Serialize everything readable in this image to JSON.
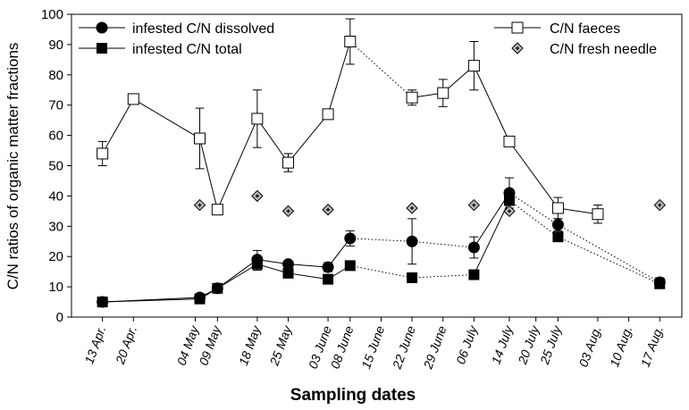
{
  "chart_data": {
    "type": "line",
    "xlabel": "Sampling dates",
    "ylabel": "C/N ratios of organic matter fractions",
    "ylim": [
      0,
      100
    ],
    "yticks": [
      0,
      10,
      20,
      30,
      40,
      50,
      60,
      70,
      80,
      90,
      100
    ],
    "date_year": 2001,
    "xlim": [
      "2001-04-06",
      "2001-08-22"
    ],
    "xticks": [
      {
        "date": "2001-04-13",
        "label": "13 Apr."
      },
      {
        "date": "2001-04-20",
        "label": "20 Apr."
      },
      {
        "date": "2001-05-04",
        "label": "04 May"
      },
      {
        "date": "2001-05-09",
        "label": "09 May"
      },
      {
        "date": "2001-05-18",
        "label": "18 May"
      },
      {
        "date": "2001-05-25",
        "label": "25 May"
      },
      {
        "date": "2001-06-03",
        "label": "03 June"
      },
      {
        "date": "2001-06-08",
        "label": "08 June"
      },
      {
        "date": "2001-06-15",
        "label": "15 June"
      },
      {
        "date": "2001-06-22",
        "label": "22 June"
      },
      {
        "date": "2001-06-29",
        "label": "29 June"
      },
      {
        "date": "2001-07-06",
        "label": "06 July"
      },
      {
        "date": "2001-07-14",
        "label": "14 July"
      },
      {
        "date": "2001-07-20",
        "label": "20 July"
      },
      {
        "date": "2001-07-25",
        "label": "25 July"
      },
      {
        "date": "2001-08-03",
        "label": "03 Aug."
      },
      {
        "date": "2001-08-10",
        "label": "10 Aug."
      },
      {
        "date": "2001-08-17",
        "label": "17 Aug."
      }
    ],
    "legend": {
      "left": [
        {
          "label": "infested C/N dissolved",
          "series": "dissolved"
        },
        {
          "label": "infested C/N total",
          "series": "total"
        }
      ],
      "right": [
        {
          "label": "C/N faeces",
          "series": "faeces"
        },
        {
          "label": "C/N fresh needle",
          "series": "needle"
        }
      ]
    },
    "series": [
      {
        "id": "faeces",
        "marker": "open-square",
        "color": "#000000",
        "fill": "#ffffff",
        "points": [
          {
            "x": "2001-04-13",
            "y": 54,
            "err": 4,
            "link": "solid"
          },
          {
            "x": "2001-04-20",
            "y": 72,
            "err": 1.5,
            "link": "solid"
          },
          {
            "x": "2001-05-05",
            "y": 59,
            "err": 10,
            "link": "solid"
          },
          {
            "x": "2001-05-09",
            "y": 35.5,
            "err": 0,
            "link": "solid"
          },
          {
            "x": "2001-05-18",
            "y": 65.5,
            "err": 9.5,
            "link": "solid"
          },
          {
            "x": "2001-05-25",
            "y": 51,
            "err": 3,
            "link": "solid"
          },
          {
            "x": "2001-06-03",
            "y": 67,
            "err": 0,
            "link": "solid"
          },
          {
            "x": "2001-06-08",
            "y": 91,
            "err": 7.5,
            "link": "solid"
          },
          {
            "x": "2001-06-22",
            "y": 72.5,
            "err": 2.5,
            "link": "dotted"
          },
          {
            "x": "2001-06-29",
            "y": 74,
            "err": 4.5,
            "link": "solid"
          },
          {
            "x": "2001-07-06",
            "y": 83,
            "err": 8,
            "link": "solid"
          },
          {
            "x": "2001-07-14",
            "y": 58,
            "err": 0,
            "link": "solid"
          },
          {
            "x": "2001-07-25",
            "y": 36,
            "err": 3.5,
            "link": "solid"
          },
          {
            "x": "2001-08-03",
            "y": 34,
            "err": 3,
            "link": "solid"
          }
        ]
      },
      {
        "id": "needle",
        "marker": "diamond",
        "color": "#000000",
        "fill": "#b8b8b8",
        "points": [
          {
            "x": "2001-05-05",
            "y": 37
          },
          {
            "x": "2001-05-18",
            "y": 40
          },
          {
            "x": "2001-05-25",
            "y": 35
          },
          {
            "x": "2001-06-03",
            "y": 35.5
          },
          {
            "x": "2001-06-22",
            "y": 36
          },
          {
            "x": "2001-07-06",
            "y": 37
          },
          {
            "x": "2001-07-14",
            "y": 35
          },
          {
            "x": "2001-08-17",
            "y": 37
          }
        ]
      },
      {
        "id": "dissolved",
        "marker": "filled-circle",
        "color": "#000000",
        "fill": "#000000",
        "points": [
          {
            "x": "2001-04-13",
            "y": 5,
            "err": 0,
            "link": "solid"
          },
          {
            "x": "2001-05-05",
            "y": 6.5,
            "err": 0,
            "link": "solid"
          },
          {
            "x": "2001-05-09",
            "y": 9.5,
            "err": 0,
            "link": "solid"
          },
          {
            "x": "2001-05-18",
            "y": 19,
            "err": 3,
            "link": "solid"
          },
          {
            "x": "2001-05-25",
            "y": 17.5,
            "err": 0,
            "link": "solid"
          },
          {
            "x": "2001-06-03",
            "y": 16.5,
            "err": 1.5,
            "link": "solid"
          },
          {
            "x": "2001-06-08",
            "y": 26,
            "err": 2.5,
            "link": "solid"
          },
          {
            "x": "2001-06-22",
            "y": 25,
            "err": 7.5,
            "link": "dotted"
          },
          {
            "x": "2001-07-06",
            "y": 23,
            "err": 3.5,
            "link": "dotted"
          },
          {
            "x": "2001-07-14",
            "y": 41,
            "err": 5,
            "link": "solid"
          },
          {
            "x": "2001-07-25",
            "y": 30.5,
            "err": 2,
            "link": "dotted"
          },
          {
            "x": "2001-08-17",
            "y": 11.5,
            "err": 1.5,
            "link": "dotted"
          }
        ]
      },
      {
        "id": "total",
        "marker": "filled-square",
        "color": "#000000",
        "fill": "#000000",
        "points": [
          {
            "x": "2001-04-13",
            "y": 5,
            "err": 0,
            "link": "solid"
          },
          {
            "x": "2001-05-05",
            "y": 6,
            "err": 0,
            "link": "solid"
          },
          {
            "x": "2001-05-09",
            "y": 9.5,
            "err": 0,
            "link": "solid"
          },
          {
            "x": "2001-05-18",
            "y": 17.5,
            "err": 2,
            "link": "solid"
          },
          {
            "x": "2001-05-25",
            "y": 14.5,
            "err": 0,
            "link": "solid"
          },
          {
            "x": "2001-06-03",
            "y": 12.5,
            "err": 0,
            "link": "solid"
          },
          {
            "x": "2001-06-08",
            "y": 17,
            "err": 0,
            "link": "solid"
          },
          {
            "x": "2001-06-22",
            "y": 13,
            "err": 0,
            "link": "dotted"
          },
          {
            "x": "2001-07-06",
            "y": 14,
            "err": 0,
            "link": "dotted"
          },
          {
            "x": "2001-07-14",
            "y": 38.5,
            "err": 0,
            "link": "solid"
          },
          {
            "x": "2001-07-25",
            "y": 26.5,
            "err": 0,
            "link": "dotted"
          },
          {
            "x": "2001-08-17",
            "y": 11,
            "err": 0,
            "link": "dotted"
          }
        ]
      }
    ]
  }
}
